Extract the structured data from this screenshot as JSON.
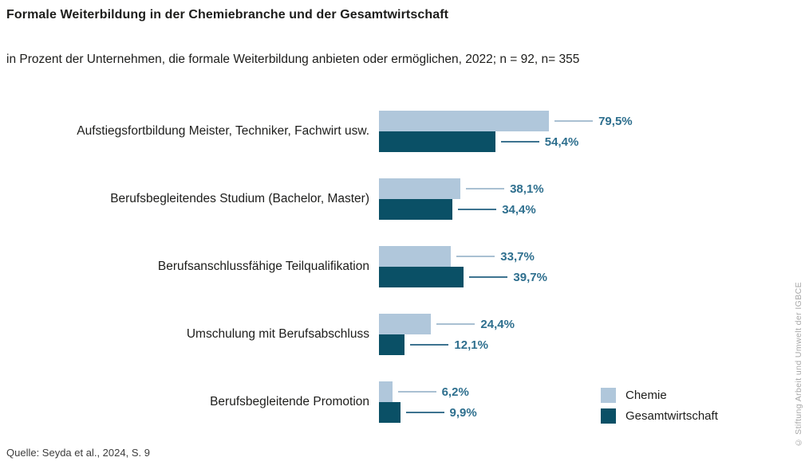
{
  "header": {
    "title": "Formale Weiterbildung in der Chemiebranche und der Gesamtwirtschaft",
    "subtitle": "in Prozent der Unternehmen, die formale Weiterbildung anbieten oder ermöglichen, 2022; n = 92, n= 355"
  },
  "chart_data": {
    "type": "bar",
    "orientation": "horizontal",
    "title": "Formale Weiterbildung in der Chemiebranche und der Gesamtwirtschaft",
    "subtitle": "in Prozent der Unternehmen, die formale Weiterbildung anbieten oder ermöglichen, 2022; n = 92, n= 355",
    "unit": "percent",
    "xlim": [
      0,
      100
    ],
    "grid": false,
    "legend_position": "bottom-right",
    "categories": [
      "Aufstiegsfortbildung Meister, Techniker, Fachwirt usw.",
      "Berufsbegleitendes Studium (Bachelor, Master)",
      "Berufsanschlussfähige Teilqualifikation",
      "Umschulung mit Berufsabschluss",
      "Berufsbegleitende Promotion"
    ],
    "series": [
      {
        "name": "Chemie",
        "key": "chemie",
        "color": "#b0c7db",
        "leader_color": "#a9c0d2",
        "values": [
          79.5,
          38.1,
          33.7,
          24.4,
          6.2
        ],
        "display_labels": [
          "79,5%",
          "38,1%",
          "33,7%",
          "24,4%",
          "6,2%"
        ]
      },
      {
        "name": "Gesamtwirtschaft",
        "key": "gesamtwirtschaft",
        "color": "#0a5066",
        "leader_color": "#3d7390",
        "values": [
          54.4,
          34.4,
          39.7,
          12.1,
          9.9
        ],
        "display_labels": [
          "54,4%",
          "34,4%",
          "39,7%",
          "12,1%",
          "9,9%"
        ]
      }
    ],
    "value_label_color": "#2e6f8e"
  },
  "legend": {
    "items": [
      {
        "label": "Chemie",
        "color": "#b0c7db"
      },
      {
        "label": "Gesamtwirtschaft",
        "color": "#0a5066"
      }
    ]
  },
  "footer": {
    "source": "Quelle: Seyda et al., 2024, S. 9",
    "watermark": "© Stiftung Arbeit und Umwelt der IGBCE"
  }
}
